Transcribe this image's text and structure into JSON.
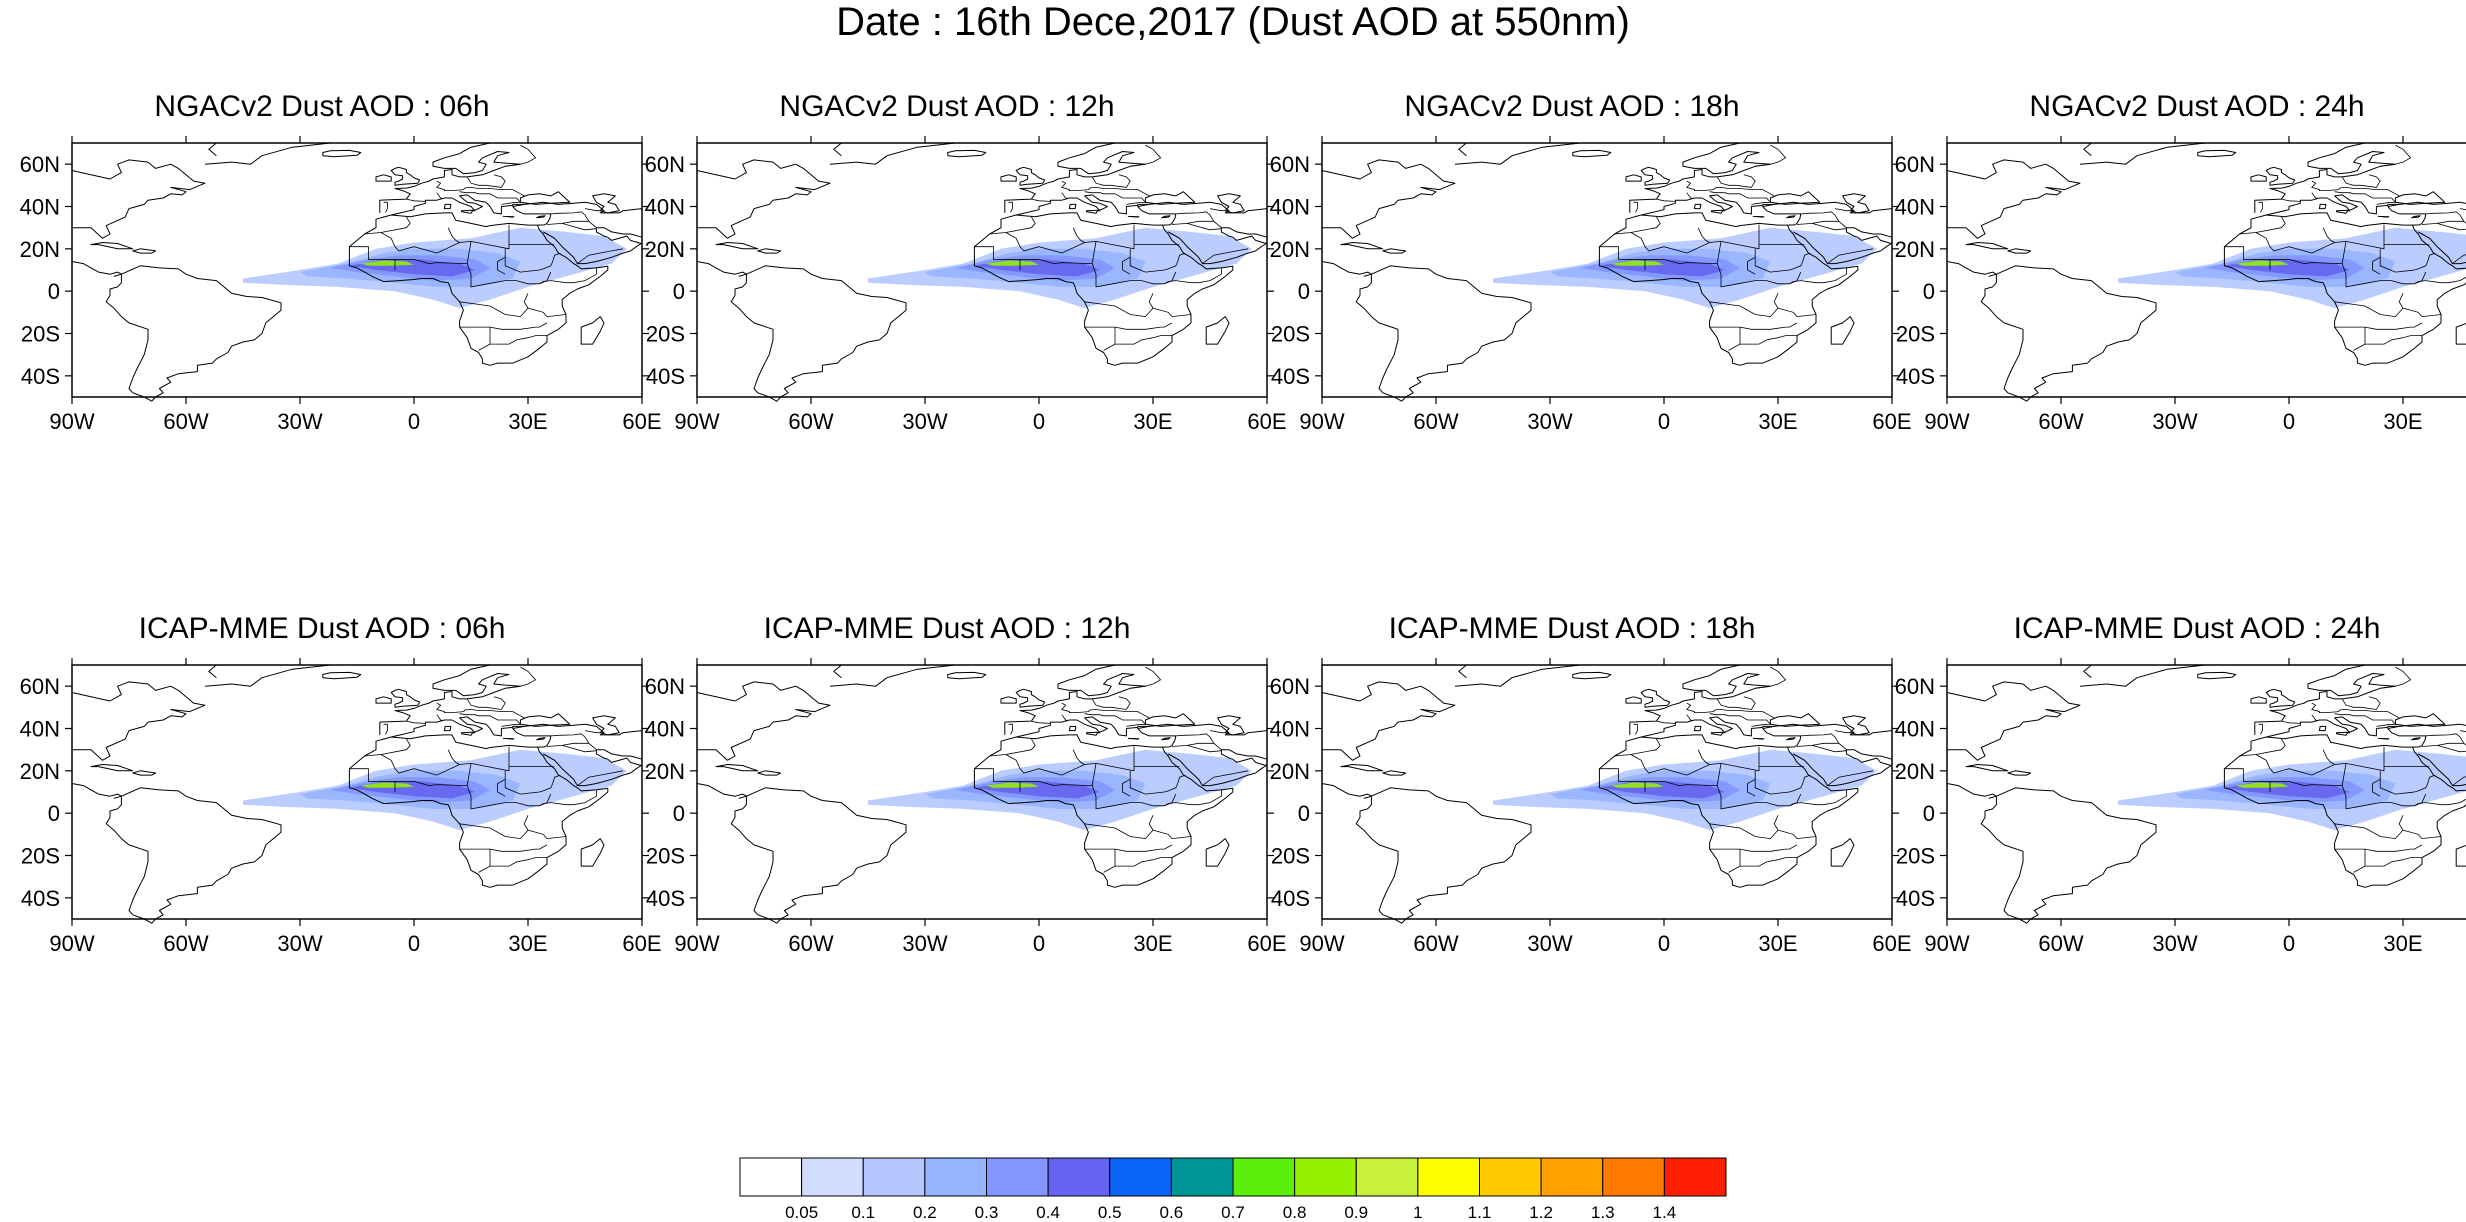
{
  "figure": {
    "title": "Date : 16th Dece,2017 (Dust AOD at 550nm)"
  },
  "panels": [
    {
      "title": "NGACv2 Dust AOD : 06h"
    },
    {
      "title": "NGACv2 Dust AOD : 12h"
    },
    {
      "title": "NGACv2 Dust AOD : 18h"
    },
    {
      "title": "NGACv2 Dust AOD : 24h"
    },
    {
      "title": "ICAP-MME Dust AOD : 06h"
    },
    {
      "title": "ICAP-MME Dust AOD : 12h"
    },
    {
      "title": "ICAP-MME Dust AOD : 18h"
    },
    {
      "title": "ICAP-MME Dust AOD : 24h"
    }
  ],
  "axes": {
    "lon_range": [
      -90,
      60
    ],
    "lat_range": [
      -50,
      70
    ],
    "lon_ticks": [
      {
        "value": -90,
        "label": "90W"
      },
      {
        "value": -60,
        "label": "60W"
      },
      {
        "value": -30,
        "label": "30W"
      },
      {
        "value": 0,
        "label": "0"
      },
      {
        "value": 30,
        "label": "30E"
      },
      {
        "value": 60,
        "label": "60E"
      }
    ],
    "lat_ticks": [
      {
        "value": 60,
        "label": "60N"
      },
      {
        "value": 40,
        "label": "40N"
      },
      {
        "value": 20,
        "label": "20N"
      },
      {
        "value": 0,
        "label": "0"
      },
      {
        "value": -20,
        "label": "20S"
      },
      {
        "value": -40,
        "label": "40S"
      }
    ]
  },
  "colorbar": {
    "colors": [
      "#ffffff",
      "#d2dcff",
      "#b4c8ff",
      "#96b4ff",
      "#8296ff",
      "#6464f0",
      "#0a64f5",
      "#009696",
      "#5af00a",
      "#96f000",
      "#c8f03c",
      "#ffff00",
      "#ffc800",
      "#ffa000",
      "#ff7800",
      "#ff1e00"
    ],
    "labels": [
      "0.05",
      "0.1",
      "0.2",
      "0.3",
      "0.4",
      "0.5",
      "0.6",
      "0.7",
      "0.8",
      "0.9",
      "1",
      "1.1",
      "1.2",
      "1.3",
      "1.4"
    ]
  },
  "map_layers": {
    "ocean_color": "#ffffff",
    "coastline_color": "#000000",
    "dust_plume_levels": [
      "0.05",
      "0.1",
      "0.2",
      "0.3",
      "0.4",
      "0.8"
    ]
  }
}
